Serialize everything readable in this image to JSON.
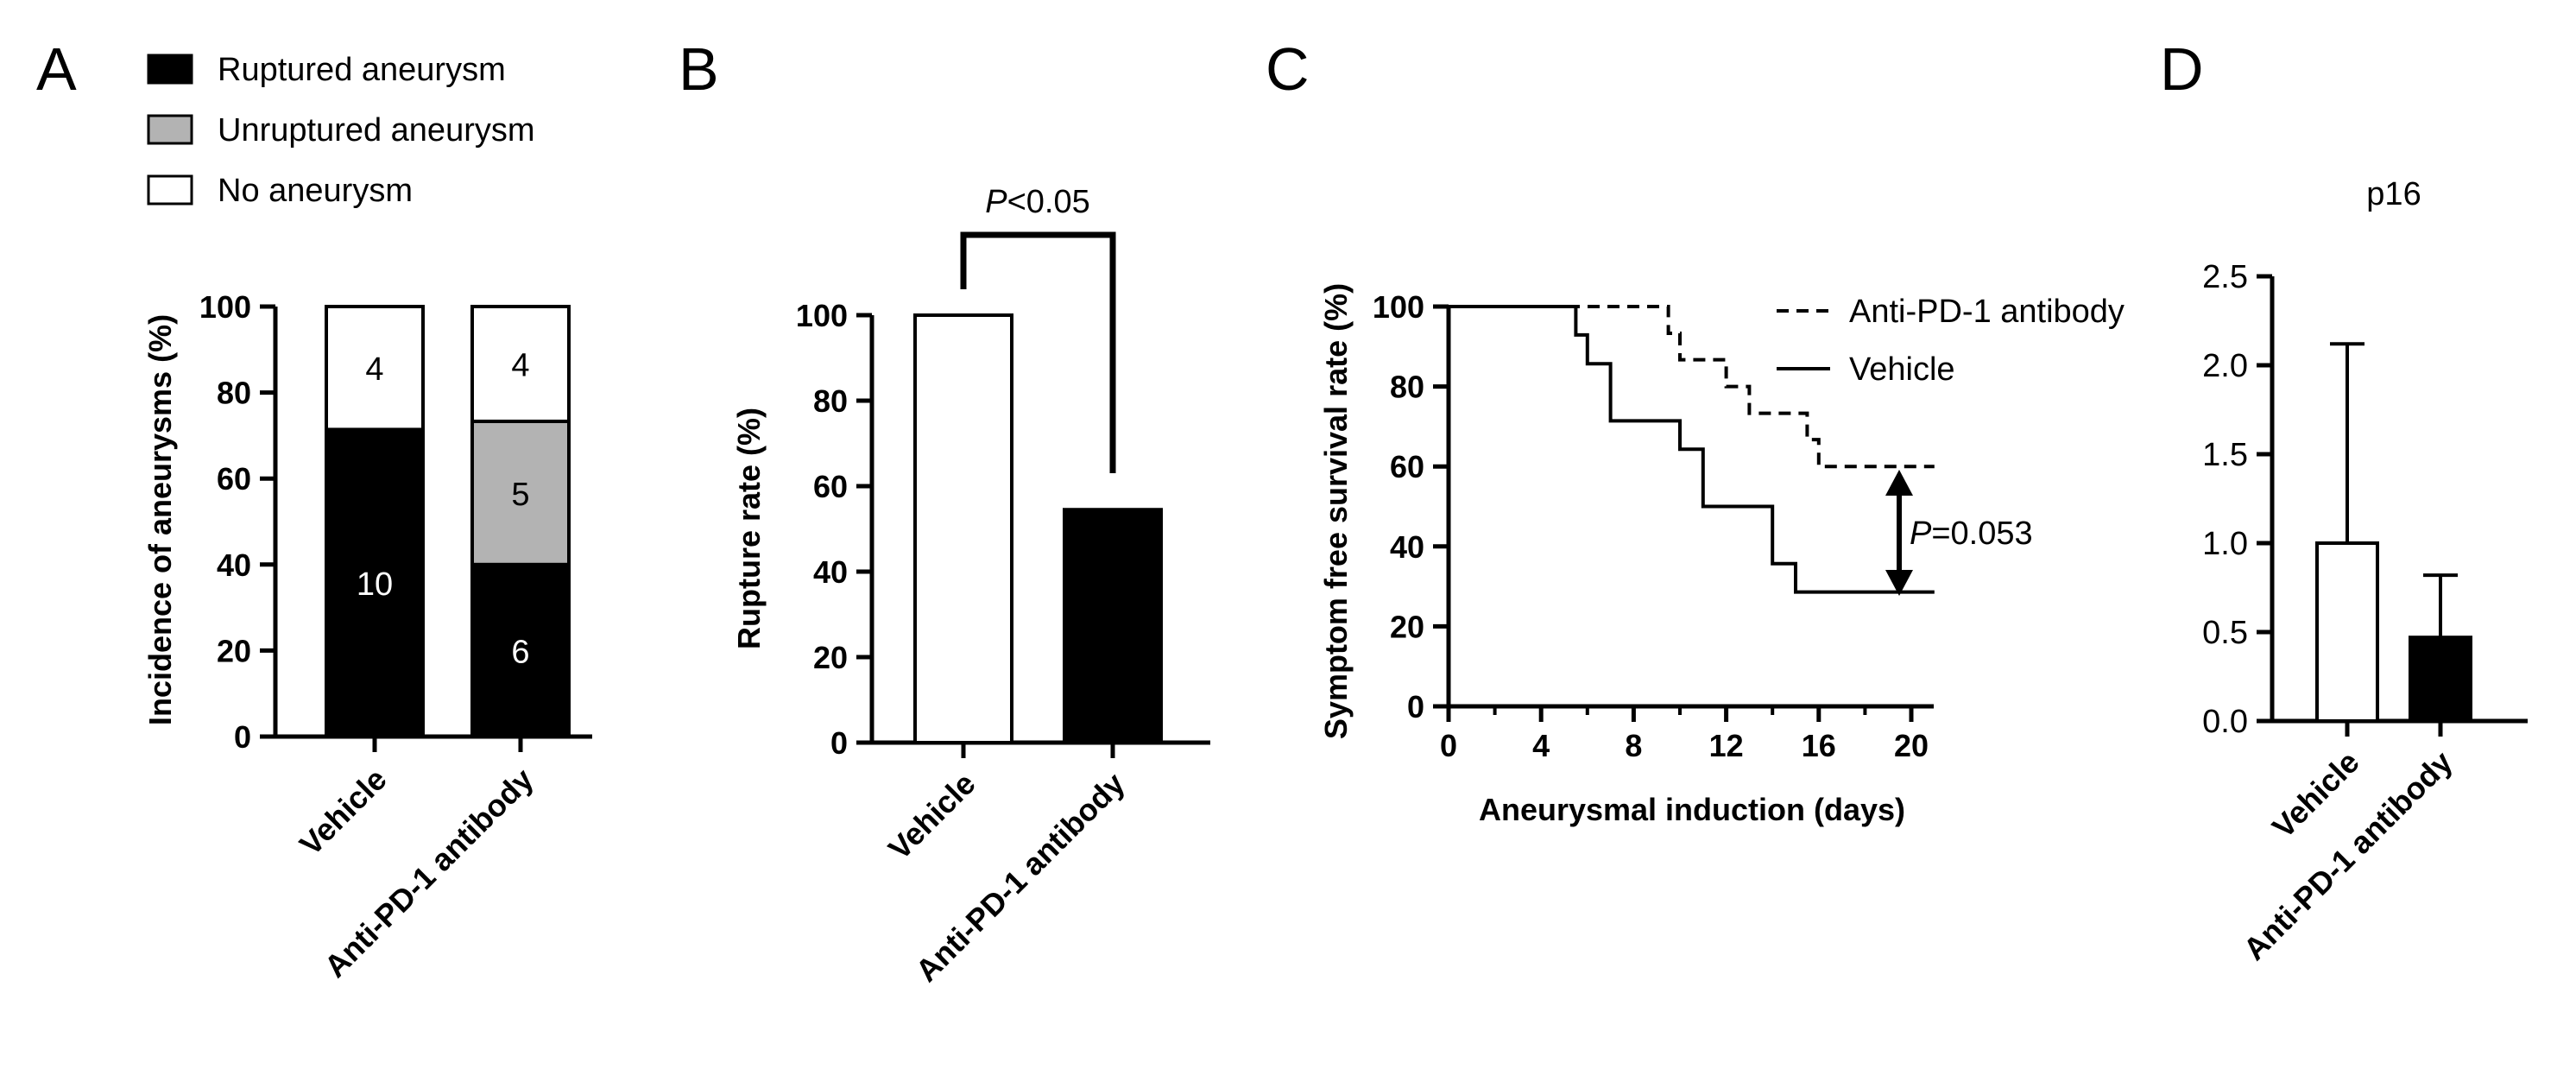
{
  "panels": {
    "a": {
      "letter": "A",
      "legend": [
        "Ruptured aneurysm",
        "Unruptured aneurysm",
        "No aneurysm"
      ]
    },
    "b": {
      "letter": "B",
      "annotation_p": "P",
      "annotation_rest": "<0.05"
    },
    "c": {
      "letter": "C",
      "annotation_p": "P",
      "annotation_rest": "=0.053"
    },
    "d": {
      "letter": "D"
    }
  },
  "colors": {
    "ruptured": "#000000",
    "unruptured": "#b3b3b3",
    "none": "#ffffff",
    "axis": "#000000"
  },
  "chart_data": [
    {
      "panel": "A",
      "type": "bar",
      "stacked": true,
      "categories": [
        "Vehicle",
        "Anti-PD-1 antibody"
      ],
      "series": [
        {
          "name": "Ruptured aneurysm",
          "values": [
            71.4,
            40
          ],
          "counts": [
            "10",
            "6"
          ]
        },
        {
          "name": "Unruptured aneurysm",
          "values": [
            0,
            33.3
          ],
          "counts": [
            "",
            "5"
          ]
        },
        {
          "name": "No aneurysm",
          "values": [
            28.6,
            26.7
          ],
          "counts": [
            "4",
            "4"
          ]
        }
      ],
      "ylabel": "Incidence of aneurysms (%)",
      "ylim": [
        0,
        100
      ],
      "yticks": [
        "0",
        "20",
        "40",
        "60",
        "80",
        "100"
      ],
      "legend_position": "top"
    },
    {
      "panel": "B",
      "type": "bar",
      "categories": [
        "Vehicle",
        "Anti-PD-1 antibody"
      ],
      "values": [
        100,
        54.5
      ],
      "ylabel": "Rupture rate (%)",
      "ylim": [
        0,
        100
      ],
      "yticks": [
        "0",
        "20",
        "40",
        "60",
        "80",
        "100"
      ]
    },
    {
      "panel": "C",
      "type": "line",
      "step": true,
      "xlabel": "Aneurysmal induction (days)",
      "ylabel": "Symptom free survival rate (%)",
      "xlim": [
        0,
        21
      ],
      "ylim": [
        0,
        100
      ],
      "xticks": [
        "0",
        "4",
        "8",
        "12",
        "16",
        "20"
      ],
      "yticks": [
        "0",
        "20",
        "40",
        "60",
        "80",
        "100"
      ],
      "series": [
        {
          "name": "Anti-PD-1 antibody",
          "style": "dashed",
          "x": [
            0,
            9,
            9.5,
            10,
            11.5,
            12,
            13,
            15,
            15.5,
            16,
            21
          ],
          "y": [
            100,
            100,
            93.3,
            86.7,
            86.7,
            80,
            73.3,
            73.3,
            66.7,
            60,
            60
          ]
        },
        {
          "name": "Vehicle",
          "style": "solid",
          "x": [
            0,
            5,
            5.5,
            6,
            7,
            10,
            11,
            14,
            15,
            21
          ],
          "y": [
            100,
            100,
            92.9,
            85.7,
            71.4,
            64.3,
            50,
            35.7,
            28.6,
            28.6
          ]
        }
      ],
      "legend_position": "top-right"
    },
    {
      "panel": "D",
      "type": "bar",
      "title": "p16",
      "categories": [
        "Vehicle",
        "Anti-PD-1 antibody"
      ],
      "values": [
        1.0,
        0.47
      ],
      "errors": [
        1.12,
        0.35
      ],
      "ylim": [
        0,
        2.5
      ],
      "yticks": [
        "0.0",
        "0.5",
        "1.0",
        "1.5",
        "2.0",
        "2.5"
      ]
    }
  ]
}
